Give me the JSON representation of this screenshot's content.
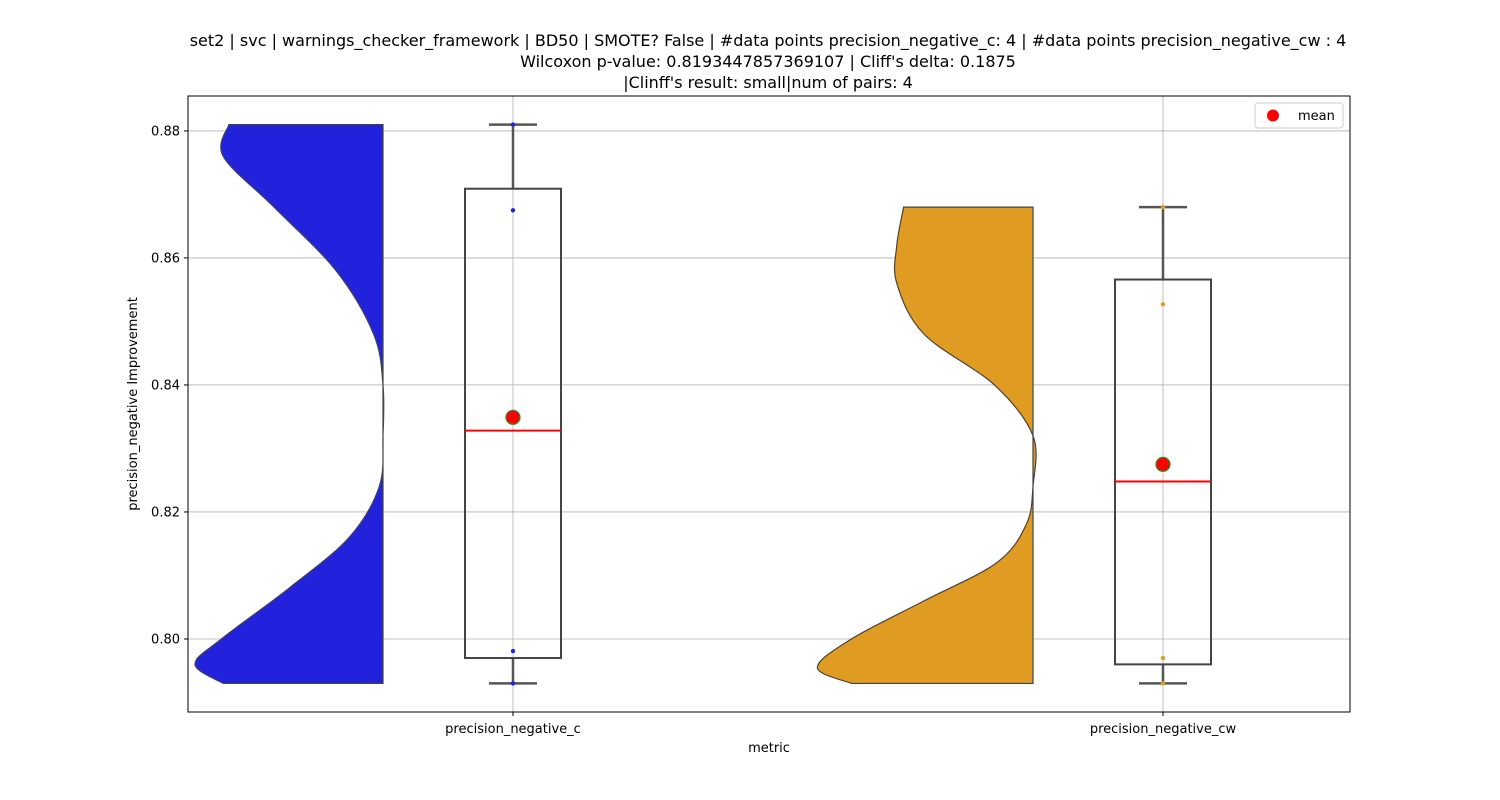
{
  "chart_data": {
    "type": "violin-box",
    "title_lines": [
      "set2 | svc | warnings_checker_framework | BD50 | SMOTE? False | #data points precision_negative_c: 4 | #data points precision_negative_cw : 4",
      "Wilcoxon p-value: 0.8193447857369107 | Cliff's delta: 0.1875",
      "|Clinff's result: small|num of pairs: 4"
    ],
    "xlabel": "metric",
    "ylabel": "precision_negative Improvement",
    "ylim": [
      0.7885,
      0.8855
    ],
    "yticks": [
      0.8,
      0.82,
      0.84,
      0.86,
      0.88
    ],
    "ytick_labels": [
      "0.80",
      "0.82",
      "0.84",
      "0.86",
      "0.88"
    ],
    "grid": true,
    "legend": {
      "position": "top-right",
      "entries": [
        {
          "label": "mean",
          "color": "#ff0000"
        }
      ]
    },
    "categories": [
      "precision_negative_c",
      "precision_negative_cw"
    ],
    "series": [
      {
        "category": "precision_negative_c",
        "violin_color": "#2222dd",
        "point_color": "#2222dd",
        "points": [
          0.881,
          0.8675,
          0.7981,
          0.793
        ],
        "box": {
          "min": 0.793,
          "q1": 0.797,
          "median": 0.8328,
          "q3": 0.8709,
          "max": 0.881
        },
        "mean": 0.8349,
        "density": [
          [
            0.793,
            0.85
          ],
          [
            0.796,
            1.0
          ],
          [
            0.8,
            0.86
          ],
          [
            0.808,
            0.5
          ],
          [
            0.816,
            0.18
          ],
          [
            0.824,
            0.02
          ],
          [
            0.832,
            0.0
          ],
          [
            0.84,
            0.0
          ],
          [
            0.848,
            0.05
          ],
          [
            0.858,
            0.25
          ],
          [
            0.868,
            0.58
          ],
          [
            0.876,
            0.85
          ],
          [
            0.881,
            0.82
          ]
        ]
      },
      {
        "category": "precision_negative_cw",
        "violin_color": "#e09c22",
        "point_color": "#e09c22",
        "points": [
          0.868,
          0.8527,
          0.797,
          0.793
        ],
        "box": {
          "min": 0.793,
          "q1": 0.796,
          "median": 0.8248,
          "q3": 0.8566,
          "max": 0.868
        },
        "mean": 0.8275,
        "density": [
          [
            0.793,
            0.8
          ],
          [
            0.7955,
            0.95
          ],
          [
            0.8,
            0.8
          ],
          [
            0.806,
            0.48
          ],
          [
            0.812,
            0.16
          ],
          [
            0.818,
            0.03
          ],
          [
            0.824,
            0.0
          ],
          [
            0.832,
            0.0
          ],
          [
            0.84,
            0.17
          ],
          [
            0.848,
            0.48
          ],
          [
            0.856,
            0.6
          ],
          [
            0.862,
            0.6
          ],
          [
            0.868,
            0.57
          ]
        ]
      }
    ]
  }
}
